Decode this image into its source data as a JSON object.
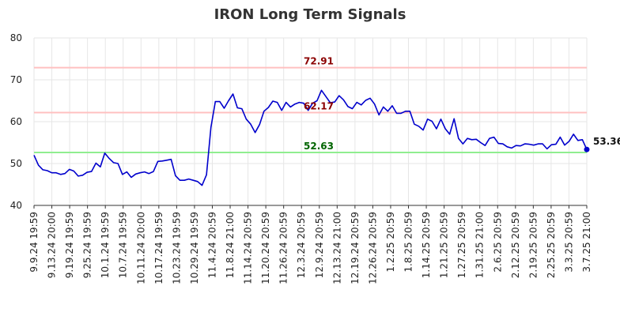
{
  "chart_data": {
    "type": "line",
    "title": "IRON Long Term Signals",
    "xlabel": "",
    "ylabel": "",
    "ylim": [
      40,
      80
    ],
    "yticks": [
      40,
      50,
      60,
      70,
      80
    ],
    "grid": true,
    "x_ticks": [
      "9.9.24 19:59",
      "9.13.24 20:00",
      "9.19.24 19:59",
      "9.25.24 19:59",
      "10.1.24 19:59",
      "10.7.24 19:59",
      "10.11.24 20:00",
      "10.17.24 19:59",
      "10.23.24 19:59",
      "10.29.24 19:59",
      "11.4.24 20:59",
      "11.8.24 21:00",
      "11.14.24 20:59",
      "11.20.24 20:59",
      "11.26.24 20:59",
      "12.3.24 20:59",
      "12.9.24 20:59",
      "12.13.24 21:00",
      "12.19.24 20:59",
      "12.26.24 20:59",
      "1.2.25 20:59",
      "1.8.25 20:59",
      "1.14.25 20:59",
      "1.21.25 20:59",
      "1.27.25 20:59",
      "1.31.25 21:00",
      "2.6.25 20:59",
      "2.12.25 20:59",
      "2.19.25 20:59",
      "2.25.25 20:59",
      "3.3.25 20:59",
      "3.7.25 21:00"
    ],
    "levels": [
      {
        "value": 72.91,
        "label": "72.91",
        "color": "#8b0000",
        "line_color": "#ffc0c0"
      },
      {
        "value": 62.17,
        "label": "62.17",
        "color": "#8b0000",
        "line_color": "#ffc0c0"
      },
      {
        "value": 52.63,
        "label": "52.63",
        "color": "#006400",
        "line_color": "#90ee90"
      }
    ],
    "last_value": {
      "value": 53.36,
      "label": "53.36"
    },
    "line_color": "#0000cc",
    "series": [
      {
        "values": [
          52.0,
          49.6,
          48.5,
          48.3,
          47.8,
          47.8,
          47.4,
          47.6,
          48.6,
          48.2,
          47.0,
          47.2,
          47.9,
          48.1,
          50.1,
          49.2,
          52.5,
          51.2,
          50.2,
          50.0,
          47.4,
          48.0,
          46.7,
          47.5,
          47.8,
          48.0,
          47.6,
          48.1,
          50.5,
          50.6,
          50.8,
          51.0,
          47.1,
          46.0,
          46.0,
          46.3,
          46.0,
          45.7,
          44.8,
          47.3,
          58.6,
          64.8,
          64.8,
          63.2,
          65.0,
          66.6,
          63.3,
          63.1,
          60.6,
          59.4,
          57.4,
          59.3,
          62.5,
          63.4,
          64.9,
          64.6,
          62.7,
          64.6,
          63.5,
          64.2,
          64.6,
          64.4,
          62.7,
          64.4,
          65.0,
          67.5,
          66.0,
          64.5,
          64.7,
          66.2,
          65.2,
          63.6,
          63.1,
          64.6,
          64.0,
          65.1,
          65.6,
          64.2,
          61.6,
          63.5,
          62.5,
          63.8,
          62.0,
          62.0,
          62.5,
          62.5,
          59.4,
          58.9,
          58.0,
          60.6,
          60.1,
          58.3,
          60.6,
          58.3,
          57.0,
          60.7,
          56.0,
          54.7,
          56.0,
          55.7,
          55.8,
          55.0,
          54.3,
          56.0,
          56.3,
          54.8,
          54.7,
          54.0,
          53.7,
          54.3,
          54.2,
          54.7,
          54.6,
          54.4,
          54.7,
          54.7,
          53.5,
          54.5,
          54.6,
          56.3,
          54.4,
          55.3,
          57.0,
          55.5,
          55.7,
          53.36
        ]
      }
    ]
  }
}
